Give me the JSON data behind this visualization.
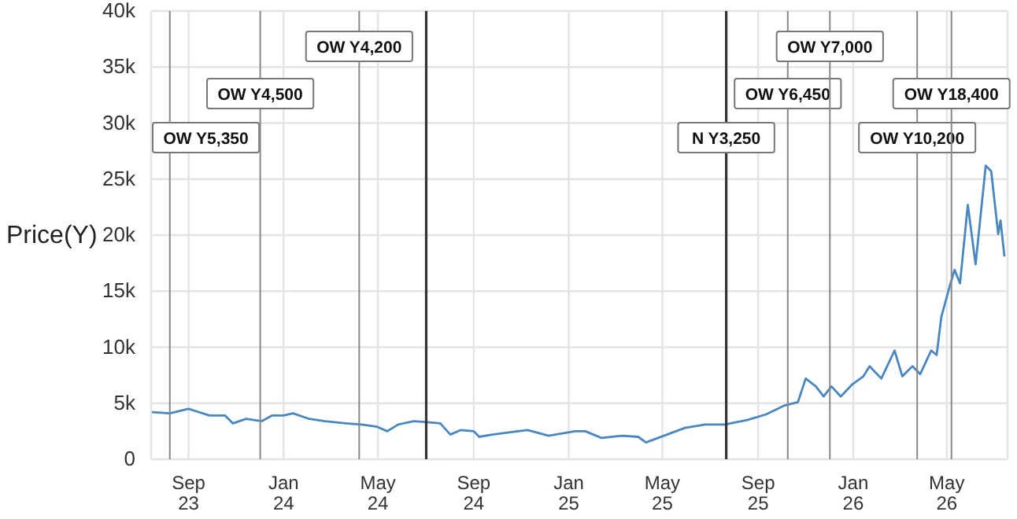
{
  "chart_data": {
    "type": "line",
    "ylabel": "Price(Y)",
    "x": [
      "2023-07-16",
      "2023-08-08",
      "2023-09-01",
      "2023-09-28",
      "2023-10-18",
      "2023-10-28",
      "2023-11-14",
      "2023-12-04",
      "2023-12-17",
      "2024-01-01",
      "2024-01-13",
      "2024-02-03",
      "2024-02-23",
      "2024-03-21",
      "2024-04-10",
      "2024-04-30",
      "2024-05-13",
      "2024-05-27",
      "2024-06-16",
      "2024-07-04",
      "2024-07-20",
      "2024-08-02",
      "2024-08-15",
      "2024-09-01",
      "2024-09-08",
      "2024-09-25",
      "2024-10-28",
      "2024-11-09",
      "2024-12-06",
      "2025-01-09",
      "2025-01-22",
      "2025-02-12",
      "2025-03-10",
      "2025-03-31",
      "2025-04-10",
      "2025-05-03",
      "2025-05-30",
      "2025-06-25",
      "2025-07-20",
      "2025-08-18",
      "2025-09-11",
      "2025-10-05",
      "2025-10-22",
      "2025-11-01",
      "2025-11-14",
      "2025-11-24",
      "2025-12-04",
      "2025-12-16",
      "2025-12-31",
      "2026-01-14",
      "2026-01-22",
      "2026-02-06",
      "2026-02-23",
      "2026-03-05",
      "2026-03-18",
      "2026-03-28",
      "2026-04-11",
      "2026-04-18",
      "2026-04-24",
      "2026-05-05",
      "2026-05-11",
      "2026-05-18",
      "2026-05-28",
      "2026-06-07",
      "2026-06-20",
      "2026-06-27",
      "2026-07-06",
      "2026-07-09",
      "2026-07-14"
    ],
    "series": [
      {
        "color": "#4a86c0",
        "values": [
          4200,
          4100,
          4500,
          3900,
          3900,
          3200,
          3600,
          3400,
          3900,
          3900,
          4100,
          3600,
          3400,
          3200,
          3100,
          2900,
          2500,
          3100,
          3400,
          3300,
          3200,
          2200,
          2600,
          2500,
          2000,
          2200,
          2500,
          2600,
          2100,
          2500,
          2500,
          1900,
          2100,
          2000,
          1500,
          2100,
          2800,
          3100,
          3100,
          3500,
          4000,
          4800,
          5100,
          7200,
          6500,
          5600,
          6500,
          5600,
          6700,
          7400,
          8300,
          7200,
          9700,
          7400,
          8300,
          7600,
          9700,
          9300,
          12700,
          15500,
          16900,
          15700,
          22700,
          17400,
          26200,
          25700,
          20100,
          21300,
          18100
        ]
      }
    ],
    "xlim": [
      "2023-07-15",
      "2026-07-18"
    ],
    "xticks": [
      {
        "value": "2023-09-01",
        "label": "Sep\n23"
      },
      {
        "value": "2024-01-01",
        "label": "Jan\n24"
      },
      {
        "value": "2024-05-01",
        "label": "May\n24"
      },
      {
        "value": "2024-09-01",
        "label": "Sep\n24"
      },
      {
        "value": "2025-01-01",
        "label": "Jan\n25"
      },
      {
        "value": "2025-05-01",
        "label": "May\n25"
      },
      {
        "value": "2025-09-01",
        "label": "Sep\n25"
      },
      {
        "value": "2026-01-01",
        "label": "Jan\n26"
      },
      {
        "value": "2026-05-01",
        "label": "May\n26"
      }
    ],
    "ylim": [
      0,
      40000
    ],
    "yticks": [
      0,
      {
        "value": 5000,
        "label": "5k"
      },
      {
        "value": 10000,
        "label": "10k"
      },
      {
        "value": 15000,
        "label": "15k"
      },
      {
        "value": 20000,
        "label": "20k"
      },
      {
        "value": 25000,
        "label": "25k"
      },
      {
        "value": 30000,
        "label": "30k"
      },
      {
        "value": 35000,
        "label": "35k"
      },
      {
        "value": 40000,
        "label": "40k"
      }
    ],
    "ref_lines": [
      {
        "axis": "x",
        "value": "2023-08-08",
        "label": "OW Y5,350",
        "color": "#888888"
      },
      {
        "axis": "x",
        "value": "2023-12-02",
        "label": "OW Y4,500",
        "color": "#888888"
      },
      {
        "axis": "x",
        "value": "2024-04-07",
        "label": "OW Y4,200",
        "color": "#888888"
      },
      {
        "axis": "x",
        "value": "2024-07-02",
        "color": "#333333"
      },
      {
        "axis": "x",
        "value": "2025-07-22",
        "label": "N Y3,250",
        "color": "#333333"
      },
      {
        "axis": "x",
        "value": "2025-10-09",
        "label": "OW Y6,450",
        "color": "#888888"
      },
      {
        "axis": "x",
        "value": "2025-12-02",
        "label": "OW Y7,000",
        "color": "#888888"
      },
      {
        "axis": "x",
        "value": "2026-03-24",
        "label": "OW Y10,200",
        "color": "#888888"
      },
      {
        "axis": "x",
        "value": "2026-05-07",
        "label": "OW Y18,400",
        "color": "#888888"
      }
    ],
    "grid": true,
    "legend": false,
    "marker": "none",
    "line_style": "solid"
  }
}
